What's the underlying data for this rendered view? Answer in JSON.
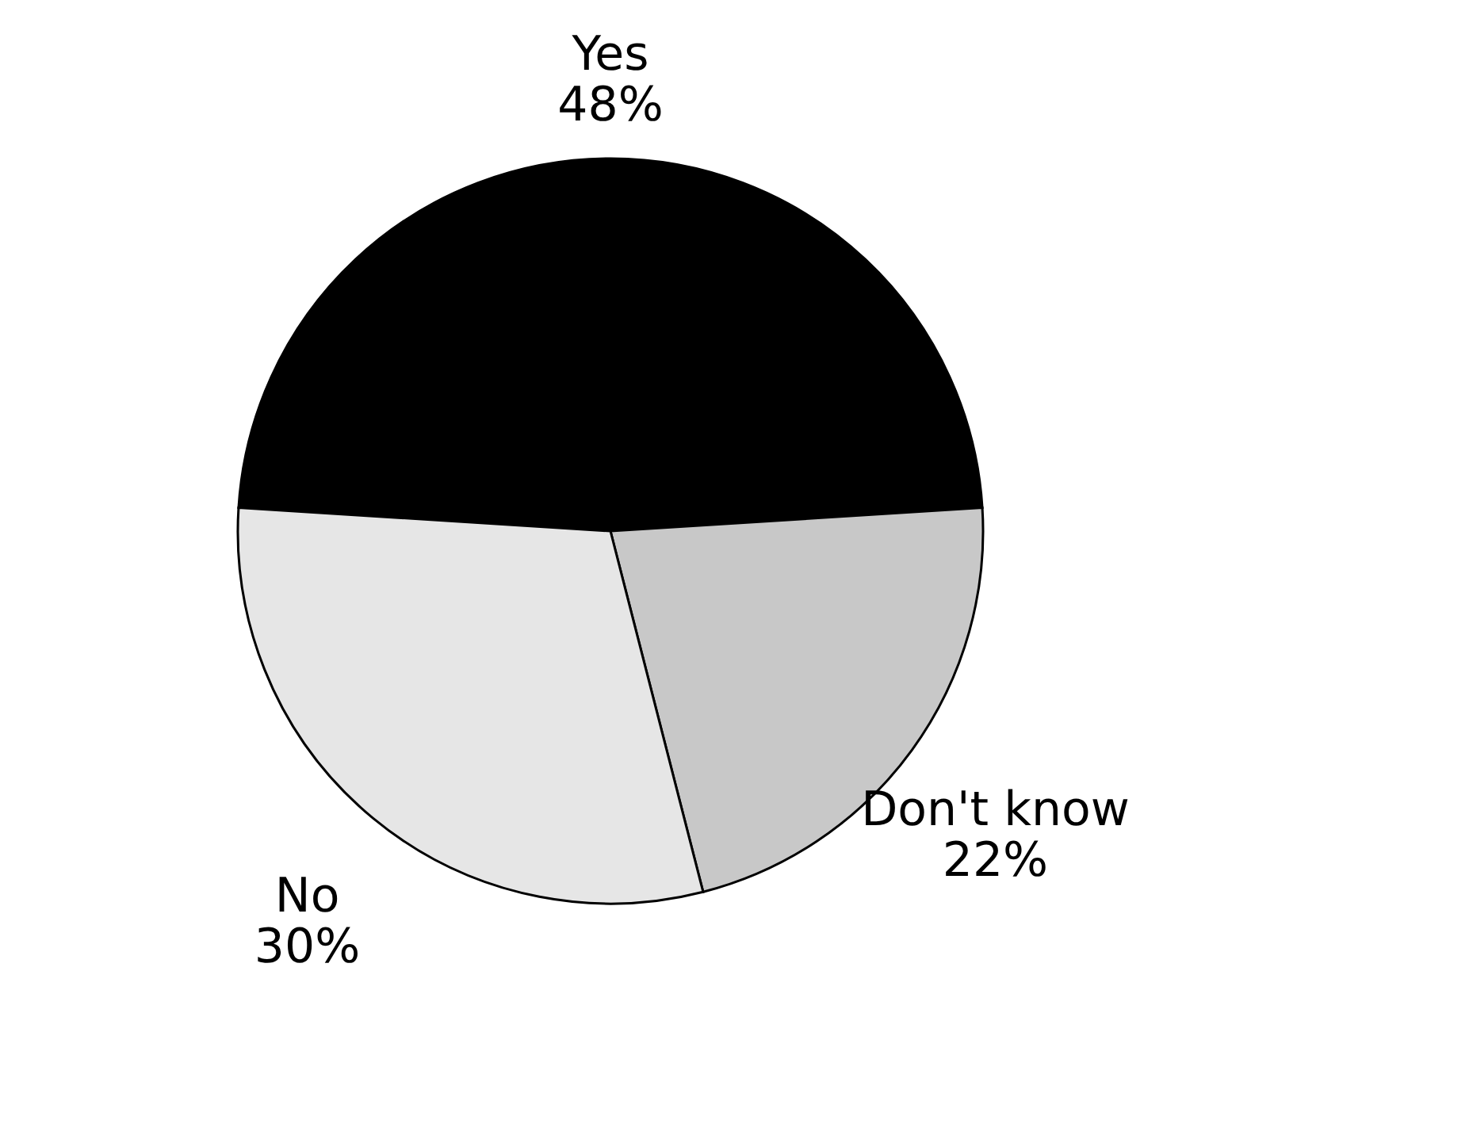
{
  "chart_data": {
    "type": "pie",
    "categories": [
      "Yes",
      "Don't know",
      "No"
    ],
    "values": [
      48,
      22,
      30
    ],
    "colors": [
      "#000000",
      "#c8c8c8",
      "#e6e6e6"
    ],
    "value_labels": [
      "48%",
      "22%",
      "30%"
    ],
    "legend": false
  }
}
